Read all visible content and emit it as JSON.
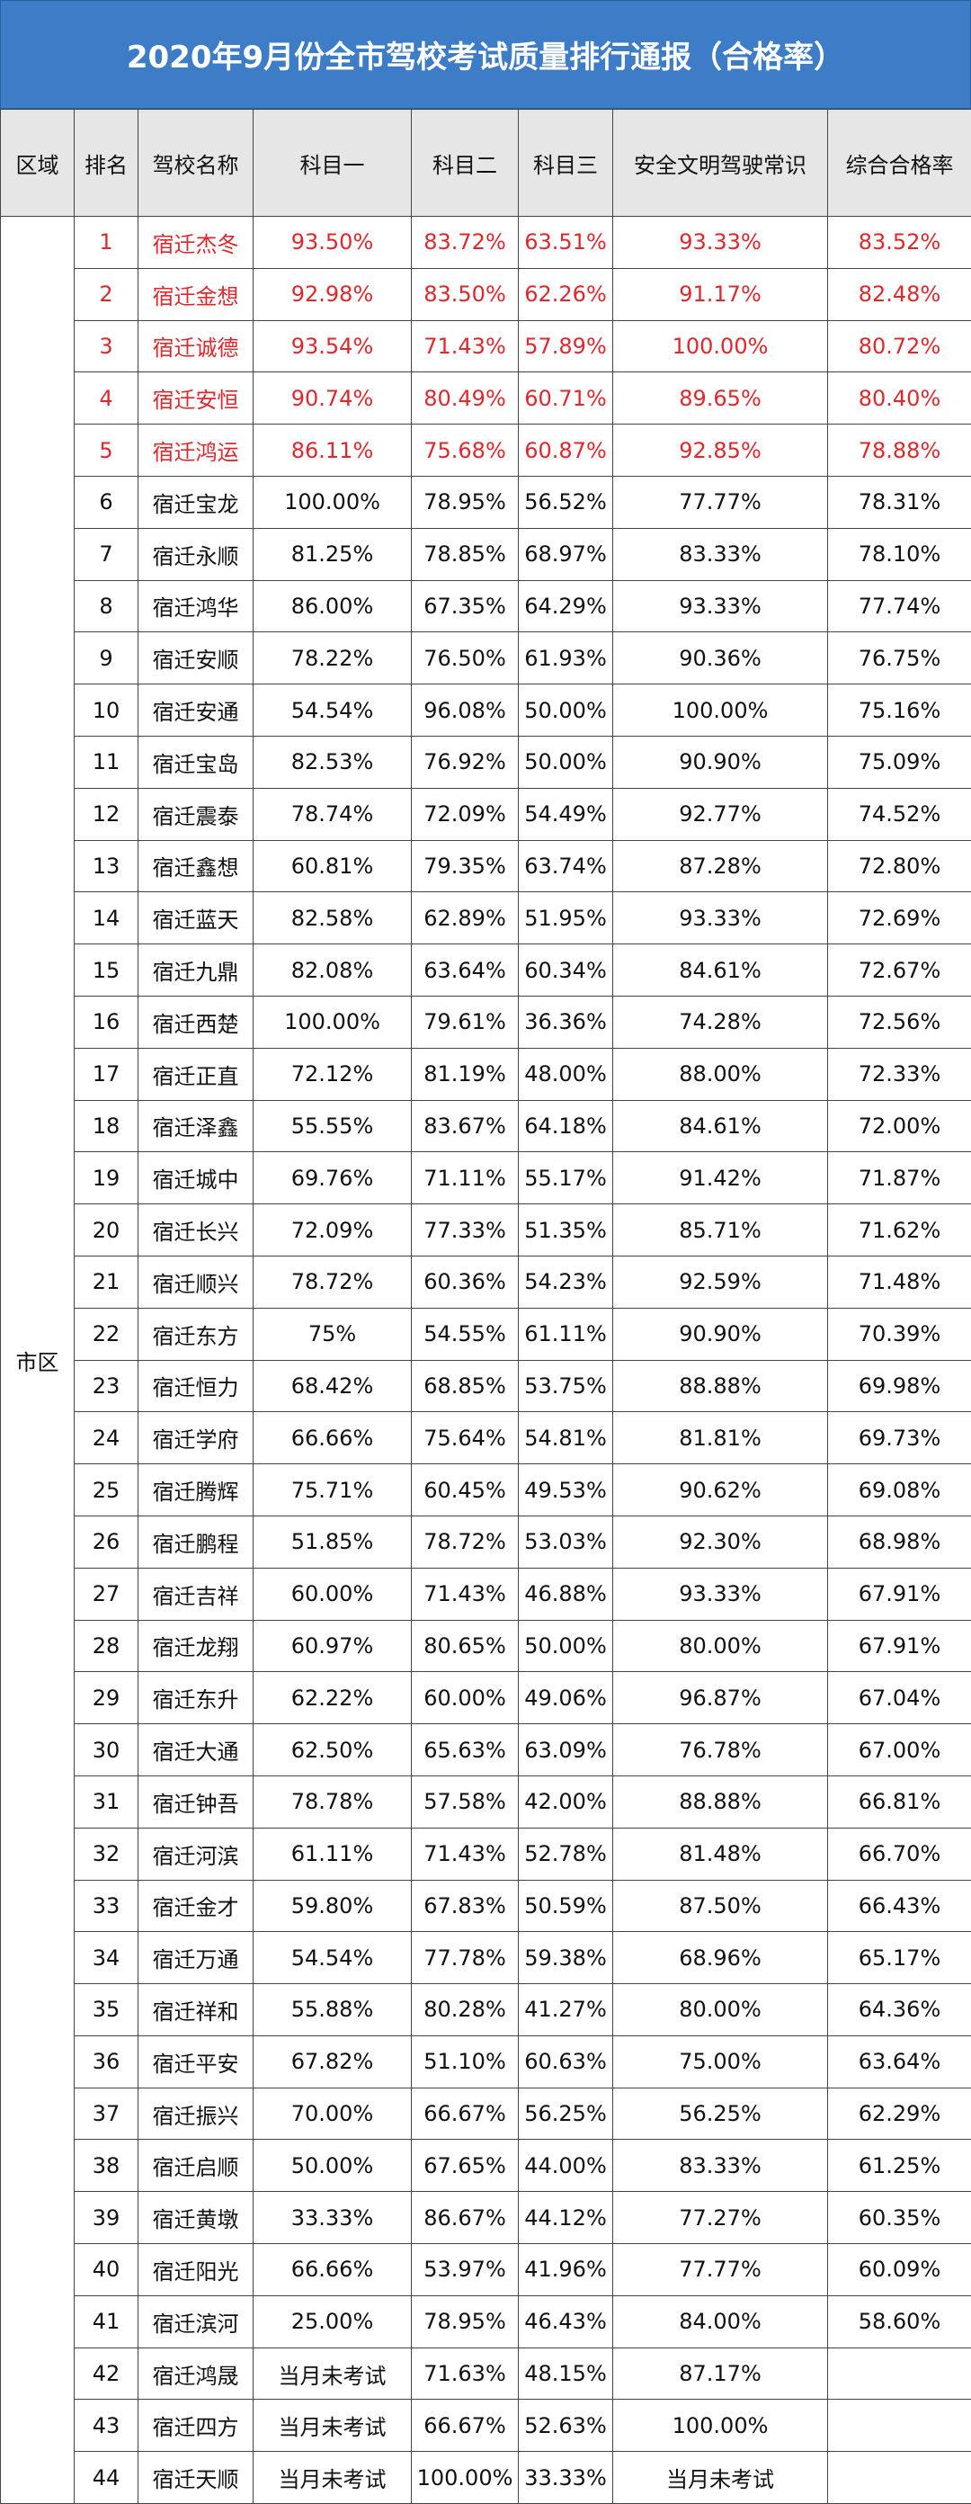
{
  "header": {
    "title": "2020年9月份全市驾校考试质量排行通报（合格率）"
  },
  "table": {
    "columns": [
      "区域",
      "排名",
      "驾校名称",
      "科目一",
      "科目二",
      "科目三",
      "安全文明驾驶常识",
      "综合合格率"
    ],
    "region": "市区",
    "rows": [
      [
        "1",
        "宿迁杰冬",
        "93.50%",
        "83.72%",
        "63.51%",
        "93.33%",
        "83.52%"
      ],
      [
        "2",
        "宿迁金想",
        "92.98%",
        "83.50%",
        "62.26%",
        "91.17%",
        "82.48%"
      ],
      [
        "3",
        "宿迁诚德",
        "93.54%",
        "71.43%",
        "57.89%",
        "100.00%",
        "80.72%"
      ],
      [
        "4",
        "宿迁安恒",
        "90.74%",
        "80.49%",
        "60.71%",
        "89.65%",
        "80.40%"
      ],
      [
        "5",
        "宿迁鸿运",
        "86.11%",
        "75.68%",
        "60.87%",
        "92.85%",
        "78.88%"
      ],
      [
        "6",
        "宿迁宝龙",
        "100.00%",
        "78.95%",
        "56.52%",
        "77.77%",
        "78.31%"
      ],
      [
        "7",
        "宿迁永顺",
        "81.25%",
        "78.85%",
        "68.97%",
        "83.33%",
        "78.10%"
      ],
      [
        "8",
        "宿迁鸿华",
        "86.00%",
        "67.35%",
        "64.29%",
        "93.33%",
        "77.74%"
      ],
      [
        "9",
        "宿迁安顺",
        "78.22%",
        "76.50%",
        "61.93%",
        "90.36%",
        "76.75%"
      ],
      [
        "10",
        "宿迁安通",
        "54.54%",
        "96.08%",
        "50.00%",
        "100.00%",
        "75.16%"
      ],
      [
        "11",
        "宿迁宝岛",
        "82.53%",
        "76.92%",
        "50.00%",
        "90.90%",
        "75.09%"
      ],
      [
        "12",
        "宿迁震泰",
        "78.74%",
        "72.09%",
        "54.49%",
        "92.77%",
        "74.52%"
      ],
      [
        "13",
        "宿迁鑫想",
        "60.81%",
        "79.35%",
        "63.74%",
        "87.28%",
        "72.80%"
      ],
      [
        "14",
        "宿迁蓝天",
        "82.58%",
        "62.89%",
        "51.95%",
        "93.33%",
        "72.69%"
      ],
      [
        "15",
        "宿迁九鼎",
        "82.08%",
        "63.64%",
        "60.34%",
        "84.61%",
        "72.67%"
      ],
      [
        "16",
        "宿迁西楚",
        "100.00%",
        "79.61%",
        "36.36%",
        "74.28%",
        "72.56%"
      ],
      [
        "17",
        "宿迁正直",
        "72.12%",
        "81.19%",
        "48.00%",
        "88.00%",
        "72.33%"
      ],
      [
        "18",
        "宿迁泽鑫",
        "55.55%",
        "83.67%",
        "64.18%",
        "84.61%",
        "72.00%"
      ],
      [
        "19",
        "宿迁城中",
        "69.76%",
        "71.11%",
        "55.17%",
        "91.42%",
        "71.87%"
      ],
      [
        "20",
        "宿迁长兴",
        "72.09%",
        "77.33%",
        "51.35%",
        "85.71%",
        "71.62%"
      ],
      [
        "21",
        "宿迁顺兴",
        "78.72%",
        "60.36%",
        "54.23%",
        "92.59%",
        "71.48%"
      ],
      [
        "22",
        "宿迁东方",
        "75%",
        "54.55%",
        "61.11%",
        "90.90%",
        "70.39%"
      ],
      [
        "23",
        "宿迁恒力",
        "68.42%",
        "68.85%",
        "53.75%",
        "88.88%",
        "69.98%"
      ],
      [
        "24",
        "宿迁学府",
        "66.66%",
        "75.64%",
        "54.81%",
        "81.81%",
        "69.73%"
      ],
      [
        "25",
        "宿迁腾辉",
        "75.71%",
        "60.45%",
        "49.53%",
        "90.62%",
        "69.08%"
      ],
      [
        "26",
        "宿迁鹏程",
        "51.85%",
        "78.72%",
        "53.03%",
        "92.30%",
        "68.98%"
      ],
      [
        "27",
        "宿迁吉祥",
        "60.00%",
        "71.43%",
        "46.88%",
        "93.33%",
        "67.91%"
      ],
      [
        "28",
        "宿迁龙翔",
        "60.97%",
        "80.65%",
        "50.00%",
        "80.00%",
        "67.91%"
      ],
      [
        "29",
        "宿迁东升",
        "62.22%",
        "60.00%",
        "49.06%",
        "96.87%",
        "67.04%"
      ],
      [
        "30",
        "宿迁大通",
        "62.50%",
        "65.63%",
        "63.09%",
        "76.78%",
        "67.00%"
      ],
      [
        "31",
        "宿迁钟吾",
        "78.78%",
        "57.58%",
        "42.00%",
        "88.88%",
        "66.81%"
      ],
      [
        "32",
        "宿迁河滨",
        "61.11%",
        "71.43%",
        "52.78%",
        "81.48%",
        "66.70%"
      ],
      [
        "33",
        "宿迁金才",
        "59.80%",
        "67.83%",
        "50.59%",
        "87.50%",
        "66.43%"
      ],
      [
        "34",
        "宿迁万通",
        "54.54%",
        "77.78%",
        "59.38%",
        "68.96%",
        "65.17%"
      ],
      [
        "35",
        "宿迁祥和",
        "55.88%",
        "80.28%",
        "41.27%",
        "80.00%",
        "64.36%"
      ],
      [
        "36",
        "宿迁平安",
        "67.82%",
        "51.10%",
        "60.63%",
        "75.00%",
        "63.64%"
      ],
      [
        "37",
        "宿迁振兴",
        "70.00%",
        "66.67%",
        "56.25%",
        "56.25%",
        "62.29%"
      ],
      [
        "38",
        "宿迁启顺",
        "50.00%",
        "67.65%",
        "44.00%",
        "83.33%",
        "61.25%"
      ],
      [
        "39",
        "宿迁黄墩",
        "33.33%",
        "86.67%",
        "44.12%",
        "77.27%",
        "60.35%"
      ],
      [
        "40",
        "宿迁阳光",
        "66.66%",
        "53.97%",
        "41.96%",
        "77.77%",
        "60.09%"
      ],
      [
        "41",
        "宿迁滨河",
        "25.00%",
        "78.95%",
        "46.43%",
        "84.00%",
        "58.60%"
      ],
      [
        "42",
        "宿迁鸿晟",
        "当月未考试",
        "71.63%",
        "48.15%",
        "87.17%"
      ],
      [
        "43",
        "宿迁四方",
        "当月未考试",
        "66.67%",
        "52.63%",
        "100.00%"
      ],
      [
        "44",
        "宿迁天顺",
        "当月未考试",
        "100.00%",
        "33.33%",
        "当月未考试"
      ]
    ]
  }
}
